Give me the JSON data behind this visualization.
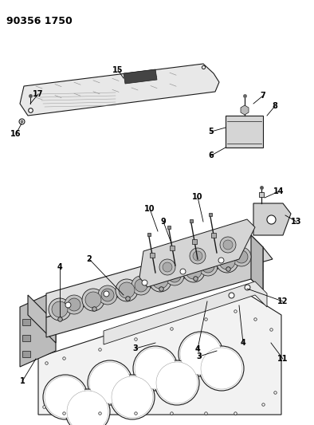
{
  "title": "90356 1750",
  "background_color": "#ffffff",
  "line_color": "#1a1a1a",
  "fig_width": 3.94,
  "fig_height": 5.33,
  "dpi": 100
}
